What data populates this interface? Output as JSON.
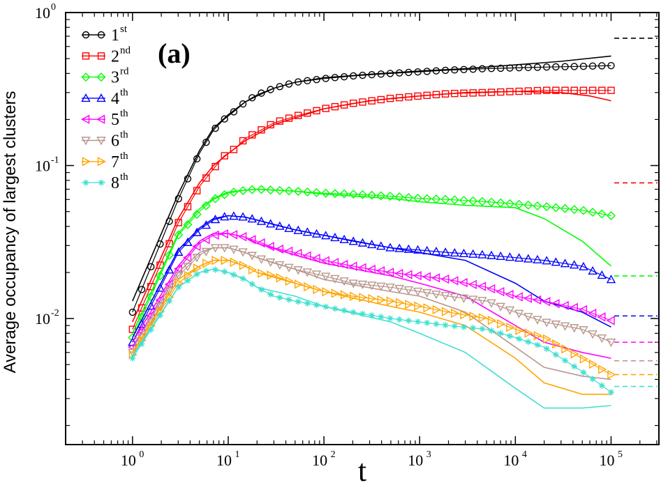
{
  "chart_data": {
    "type": "line",
    "title": "",
    "panel_label": "(a)",
    "xlabel": "t",
    "ylabel": "Average occupancy of largest clusters",
    "xscale": "log",
    "yscale": "log",
    "xlim": [
      0.2,
      316000
    ],
    "ylim": [
      0.0015,
      1.0
    ],
    "x_ticks": [
      {
        "value": 1,
        "base": "10",
        "exp": "0"
      },
      {
        "value": 10,
        "base": "10",
        "exp": "1"
      },
      {
        "value": 100,
        "base": "10",
        "exp": "2"
      },
      {
        "value": 1000,
        "base": "10",
        "exp": "3"
      },
      {
        "value": 10000,
        "base": "10",
        "exp": "4"
      },
      {
        "value": 100000,
        "base": "10",
        "exp": "5"
      }
    ],
    "y_ticks": [
      {
        "value": 1,
        "base": "10",
        "exp": "0"
      },
      {
        "value": 0.1,
        "base": "10",
        "exp": "-1"
      },
      {
        "value": 0.01,
        "base": "10",
        "exp": "-2"
      }
    ],
    "legend_position": "top-left",
    "series": [
      {
        "name": "1",
        "sup": "st",
        "color": "#000000",
        "marker": "circle",
        "markers": {
          "x": [
            1,
            3,
            5,
            7,
            9,
            12,
            15,
            20,
            30,
            50,
            100,
            200,
            500,
            1000,
            2000,
            5000,
            10000,
            20000,
            50000,
            100000
          ],
          "y": [
            0.011,
            0.06,
            0.12,
            0.17,
            0.2,
            0.23,
            0.26,
            0.29,
            0.32,
            0.35,
            0.37,
            0.385,
            0.4,
            0.41,
            0.42,
            0.43,
            0.435,
            0.44,
            0.445,
            0.45
          ]
        },
        "line": {
          "x": [
            1,
            3,
            5,
            7,
            10,
            15,
            20,
            30,
            50,
            100,
            300,
            1000,
            3000,
            10000,
            30000,
            100000
          ],
          "y": [
            0.013,
            0.065,
            0.125,
            0.175,
            0.215,
            0.26,
            0.285,
            0.32,
            0.35,
            0.375,
            0.395,
            0.415,
            0.43,
            0.455,
            0.48,
            0.52
          ]
        },
        "asymptote": 0.68
      },
      {
        "name": "2",
        "sup": "nd",
        "color": "#ff0000",
        "marker": "square",
        "markers": {
          "x": [
            1,
            3,
            5,
            7,
            9,
            12,
            15,
            20,
            30,
            50,
            100,
            200,
            500,
            1000,
            2000,
            5000,
            10000,
            20000,
            50000,
            100000
          ],
          "y": [
            0.0085,
            0.042,
            0.073,
            0.095,
            0.115,
            0.13,
            0.15,
            0.165,
            0.19,
            0.21,
            0.235,
            0.255,
            0.275,
            0.285,
            0.295,
            0.3,
            0.305,
            0.31,
            0.31,
            0.31
          ]
        },
        "line": {
          "x": [
            1,
            3,
            5,
            7,
            10,
            15,
            20,
            30,
            50,
            100,
            300,
            1000,
            3000,
            10000,
            30000,
            60000,
            100000
          ],
          "y": [
            0.0095,
            0.045,
            0.077,
            0.1,
            0.12,
            0.145,
            0.16,
            0.185,
            0.205,
            0.235,
            0.265,
            0.285,
            0.3,
            0.305,
            0.3,
            0.285,
            0.265
          ]
        },
        "asymptote": 0.077
      },
      {
        "name": "3",
        "sup": "rd",
        "color": "#00ff00",
        "marker": "diamond",
        "markers": {
          "x": [
            1,
            3,
            5,
            7,
            10,
            15,
            20,
            30,
            50,
            100,
            200,
            500,
            1000,
            2000,
            5000,
            10000,
            20000,
            50000,
            100000
          ],
          "y": [
            0.0075,
            0.035,
            0.05,
            0.06,
            0.066,
            0.069,
            0.07,
            0.069,
            0.068,
            0.066,
            0.065,
            0.063,
            0.061,
            0.06,
            0.058,
            0.056,
            0.054,
            0.051,
            0.047
          ]
        },
        "line": {
          "x": [
            1,
            3,
            5,
            7,
            10,
            15,
            20,
            50,
            100,
            500,
            1000,
            3000,
            10000,
            20000,
            50000,
            100000
          ],
          "y": [
            0.008,
            0.036,
            0.052,
            0.061,
            0.067,
            0.069,
            0.07,
            0.068,
            0.065,
            0.061,
            0.058,
            0.055,
            0.053,
            0.045,
            0.032,
            0.022
          ]
        },
        "asymptote": 0.019
      },
      {
        "name": "4",
        "sup": "th",
        "color": "#0000ff",
        "marker": "triangle-up",
        "markers": {
          "x": [
            1,
            3,
            5,
            7,
            10,
            15,
            20,
            30,
            50,
            100,
            200,
            500,
            1000,
            2000,
            5000,
            10000,
            20000,
            50000,
            100000
          ],
          "y": [
            0.007,
            0.027,
            0.038,
            0.044,
            0.047,
            0.046,
            0.044,
            0.041,
            0.038,
            0.035,
            0.032,
            0.029,
            0.028,
            0.027,
            0.026,
            0.025,
            0.024,
            0.022,
            0.018
          ]
        },
        "line": {
          "x": [
            1,
            3,
            5,
            7,
            10,
            15,
            20,
            50,
            100,
            500,
            1000,
            3000,
            10000,
            20000,
            50000,
            100000
          ],
          "y": [
            0.0075,
            0.028,
            0.039,
            0.045,
            0.047,
            0.046,
            0.044,
            0.038,
            0.035,
            0.029,
            0.027,
            0.024,
            0.017,
            0.013,
            0.011,
            0.0088
          ]
        },
        "asymptote": 0.0104
      },
      {
        "name": "5",
        "sup": "th",
        "color": "#ff00ff",
        "marker": "triangle-left",
        "markers": {
          "x": [
            1,
            3,
            5,
            7,
            10,
            15,
            20,
            30,
            50,
            100,
            200,
            500,
            1000,
            2000,
            5000,
            10000,
            20000,
            50000,
            100000
          ],
          "y": [
            0.0065,
            0.021,
            0.031,
            0.035,
            0.036,
            0.034,
            0.032,
            0.029,
            0.027,
            0.024,
            0.022,
            0.02,
            0.019,
            0.018,
            0.016,
            0.014,
            0.013,
            0.0115,
            0.0097
          ]
        },
        "line": {
          "x": [
            1,
            3,
            5,
            7,
            10,
            15,
            20,
            50,
            100,
            500,
            1000,
            3000,
            10000,
            20000,
            50000,
            100000
          ],
          "y": [
            0.007,
            0.022,
            0.032,
            0.036,
            0.036,
            0.034,
            0.031,
            0.026,
            0.023,
            0.019,
            0.017,
            0.014,
            0.009,
            0.007,
            0.006,
            0.0055
          ]
        },
        "asymptote": 0.007
      },
      {
        "name": "6",
        "sup": "th",
        "color": "#b8968c",
        "marker": "triangle-down",
        "markers": {
          "x": [
            1,
            3,
            5,
            7,
            10,
            15,
            20,
            30,
            50,
            100,
            200,
            500,
            1000,
            2000,
            5000,
            10000,
            20000,
            50000,
            100000
          ],
          "y": [
            0.006,
            0.019,
            0.026,
            0.029,
            0.029,
            0.027,
            0.025,
            0.023,
            0.021,
            0.019,
            0.017,
            0.016,
            0.015,
            0.014,
            0.013,
            0.011,
            0.0095,
            0.0085,
            0.007
          ]
        },
        "line": {
          "x": [
            1,
            3,
            5,
            7,
            10,
            15,
            20,
            50,
            100,
            500,
            1000,
            3000,
            10000,
            20000,
            50000,
            100000
          ],
          "y": [
            0.0063,
            0.02,
            0.027,
            0.029,
            0.029,
            0.027,
            0.025,
            0.021,
            0.018,
            0.015,
            0.014,
            0.011,
            0.0065,
            0.0048,
            0.0042,
            0.004
          ]
        },
        "asymptote": 0.0053
      },
      {
        "name": "7",
        "sup": "th",
        "color": "#ffa500",
        "marker": "triangle-right",
        "markers": {
          "x": [
            1,
            3,
            5,
            7,
            10,
            15,
            20,
            30,
            50,
            100,
            200,
            500,
            1000,
            2000,
            5000,
            10000,
            20000,
            50000,
            100000
          ],
          "y": [
            0.0058,
            0.017,
            0.022,
            0.024,
            0.024,
            0.022,
            0.02,
            0.019,
            0.017,
            0.015,
            0.014,
            0.013,
            0.012,
            0.011,
            0.01,
            0.0085,
            0.0075,
            0.0055,
            0.0043
          ]
        },
        "line": {
          "x": [
            1,
            3,
            5,
            7,
            10,
            15,
            20,
            50,
            100,
            500,
            1000,
            3000,
            10000,
            20000,
            50000,
            100000
          ],
          "y": [
            0.006,
            0.018,
            0.022,
            0.024,
            0.024,
            0.022,
            0.02,
            0.017,
            0.015,
            0.012,
            0.011,
            0.009,
            0.0055,
            0.0038,
            0.0032,
            0.0032
          ]
        },
        "asymptote": 0.0043
      },
      {
        "name": "8",
        "sup": "th",
        "color": "#40e0d0",
        "marker": "asterisk",
        "markers": {
          "x": [
            1,
            3,
            5,
            7,
            10,
            15,
            20,
            30,
            50,
            100,
            200,
            500,
            1000,
            2000,
            5000,
            10000,
            20000,
            50000,
            100000
          ],
          "y": [
            0.0055,
            0.016,
            0.02,
            0.021,
            0.02,
            0.018,
            0.016,
            0.014,
            0.013,
            0.012,
            0.011,
            0.01,
            0.0095,
            0.009,
            0.0085,
            0.0075,
            0.0065,
            0.0045,
            0.0033
          ]
        },
        "line": {
          "x": [
            1,
            3,
            5,
            7,
            10,
            15,
            20,
            50,
            100,
            500,
            1000,
            3000,
            10000,
            20000,
            50000,
            100000
          ],
          "y": [
            0.0057,
            0.016,
            0.02,
            0.021,
            0.02,
            0.018,
            0.016,
            0.014,
            0.012,
            0.0095,
            0.008,
            0.006,
            0.0035,
            0.0026,
            0.0026,
            0.0027
          ]
        },
        "asymptote": 0.0036
      }
    ]
  }
}
